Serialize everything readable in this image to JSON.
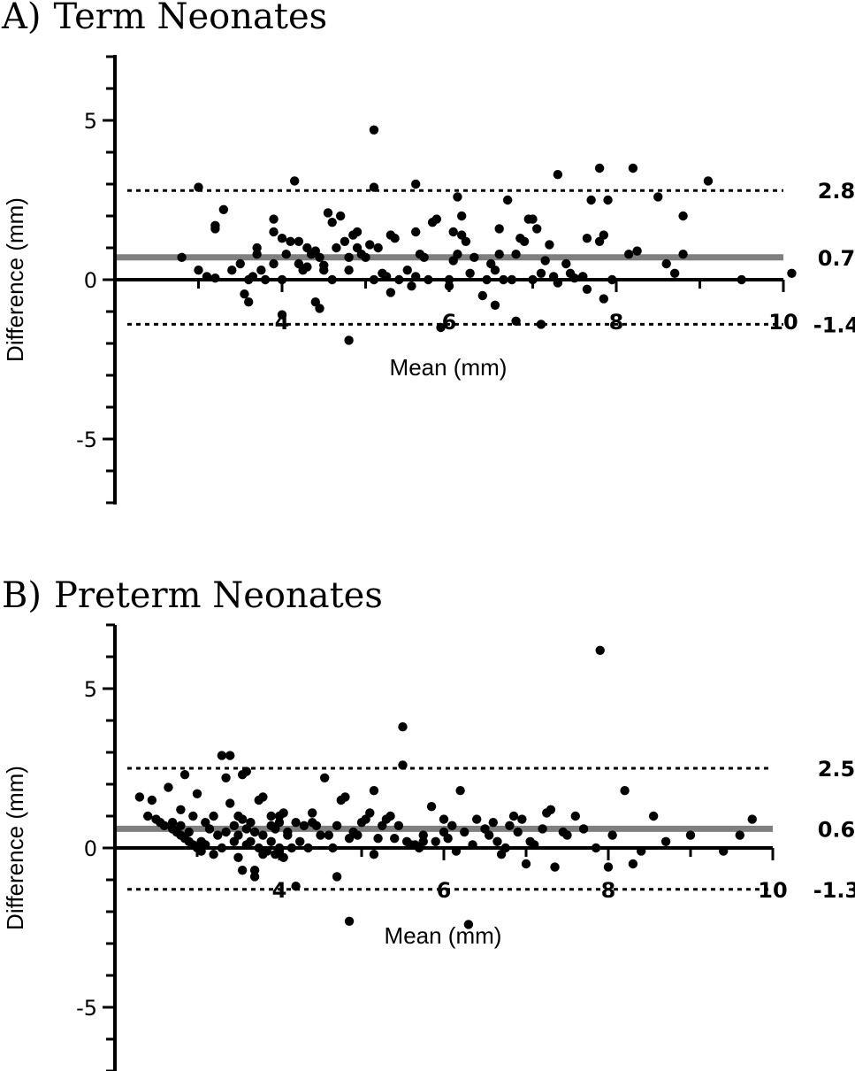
{
  "chart_data": [
    {
      "type": "scatter",
      "panel_label": "A)",
      "title": "Term Neonates",
      "xlabel": "Mean (mm)",
      "ylabel": "Difference (mm)",
      "xlim": [
        2,
        10
      ],
      "ylim": [
        -7,
        7
      ],
      "x_ticks": [
        4,
        6,
        8,
        10
      ],
      "y_ticks": [
        5,
        0,
        -5
      ],
      "mean_line": {
        "value": 0.7,
        "label": "0.7",
        "color": "#7f7f7f"
      },
      "upper_loa": {
        "value": 2.8,
        "label": "2.8"
      },
      "lower_loa": {
        "value": -1.4,
        "label": "-1.4"
      },
      "points": [
        [
          2.8,
          0.7
        ],
        [
          3.0,
          2.9
        ],
        [
          3.0,
          0.3
        ],
        [
          3.1,
          0.1
        ],
        [
          3.2,
          1.6
        ],
        [
          3.2,
          1.7
        ],
        [
          3.2,
          0.05
        ],
        [
          3.3,
          2.2
        ],
        [
          3.4,
          0.3
        ],
        [
          3.5,
          0.5
        ],
        [
          3.55,
          -0.45
        ],
        [
          3.6,
          0.0
        ],
        [
          3.6,
          -0.7
        ],
        [
          3.65,
          0.1
        ],
        [
          3.7,
          1.0
        ],
        [
          3.7,
          0.8
        ],
        [
          3.75,
          0.3
        ],
        [
          3.8,
          0.0
        ],
        [
          3.9,
          1.5
        ],
        [
          3.9,
          0.5
        ],
        [
          3.9,
          1.9
        ],
        [
          4.0,
          0.0
        ],
        [
          4.0,
          1.3
        ],
        [
          4.0,
          -1.1
        ],
        [
          4.05,
          0.8
        ],
        [
          4.1,
          1.2
        ],
        [
          4.15,
          3.1
        ],
        [
          4.2,
          0.5
        ],
        [
          4.2,
          1.2
        ],
        [
          4.25,
          0.3
        ],
        [
          4.3,
          1.0
        ],
        [
          4.3,
          0.4
        ],
        [
          4.35,
          0.8
        ],
        [
          4.4,
          0.9
        ],
        [
          4.4,
          -0.7
        ],
        [
          4.45,
          -0.9
        ],
        [
          4.45,
          0.7
        ],
        [
          4.5,
          0.3
        ],
        [
          4.5,
          0.45
        ],
        [
          4.55,
          2.1
        ],
        [
          4.6,
          1.8
        ],
        [
          4.6,
          0.0
        ],
        [
          4.65,
          1.0
        ],
        [
          4.7,
          2.0
        ],
        [
          4.75,
          1.2
        ],
        [
          4.8,
          -1.9
        ],
        [
          4.8,
          0.7
        ],
        [
          4.8,
          0.3
        ],
        [
          4.85,
          1.4
        ],
        [
          4.9,
          1.0
        ],
        [
          4.9,
          1.5
        ],
        [
          4.95,
          0.8
        ],
        [
          5.0,
          0.7
        ],
        [
          5.05,
          1.1
        ],
        [
          5.1,
          4.7
        ],
        [
          5.1,
          2.9
        ],
        [
          5.1,
          0.0
        ],
        [
          5.15,
          1.0
        ],
        [
          5.2,
          0.2
        ],
        [
          5.25,
          0.1
        ],
        [
          5.3,
          1.4
        ],
        [
          5.3,
          -0.4
        ],
        [
          5.35,
          1.3
        ],
        [
          5.4,
          0.0
        ],
        [
          5.5,
          0.3
        ],
        [
          5.55,
          -0.2
        ],
        [
          5.6,
          1.5
        ],
        [
          5.6,
          0.1
        ],
        [
          5.6,
          3.0
        ],
        [
          5.65,
          0.8
        ],
        [
          5.7,
          0.7
        ],
        [
          5.75,
          0.0
        ],
        [
          5.8,
          1.8
        ],
        [
          5.85,
          1.9
        ],
        [
          5.9,
          -1.5
        ],
        [
          6.0,
          -0.2
        ],
        [
          6.0,
          0.0
        ],
        [
          6.05,
          0.6
        ],
        [
          6.05,
          1.5
        ],
        [
          6.1,
          2.6
        ],
        [
          6.1,
          0.8
        ],
        [
          6.15,
          2.0
        ],
        [
          6.15,
          1.4
        ],
        [
          6.2,
          1.2
        ],
        [
          6.25,
          0.2
        ],
        [
          6.3,
          0.7
        ],
        [
          6.4,
          -0.5
        ],
        [
          6.45,
          0.0
        ],
        [
          6.5,
          0.5
        ],
        [
          6.55,
          -0.8
        ],
        [
          6.55,
          0.3
        ],
        [
          6.6,
          1.6
        ],
        [
          6.6,
          0.8
        ],
        [
          6.65,
          0.0
        ],
        [
          6.7,
          2.5
        ],
        [
          6.75,
          0.0
        ],
        [
          6.8,
          -1.3
        ],
        [
          6.8,
          0.8
        ],
        [
          6.85,
          1.3
        ],
        [
          6.9,
          1.2
        ],
        [
          6.95,
          1.9
        ],
        [
          7.0,
          0.0
        ],
        [
          7.0,
          1.9
        ],
        [
          7.05,
          1.6
        ],
        [
          7.1,
          -1.4
        ],
        [
          7.1,
          0.2
        ],
        [
          7.15,
          0.6
        ],
        [
          7.2,
          1.1
        ],
        [
          7.3,
          -0.1
        ],
        [
          7.4,
          0.5
        ],
        [
          7.5,
          0.05
        ],
        [
          7.6,
          0.1
        ],
        [
          7.65,
          -0.3
        ],
        [
          7.7,
          2.5
        ],
        [
          7.8,
          1.2
        ],
        [
          7.85,
          -0.6
        ],
        [
          7.6,
          0.1
        ],
        [
          7.25,
          0.1
        ],
        [
          7.3,
          3.3
        ],
        [
          7.45,
          0.2
        ],
        [
          7.65,
          1.3
        ],
        [
          7.8,
          3.5
        ],
        [
          7.95,
          0.0
        ],
        [
          7.9,
          2.5
        ],
        [
          7.85,
          1.4
        ],
        [
          8.2,
          3.5
        ],
        [
          8.25,
          0.9
        ],
        [
          8.15,
          0.8
        ],
        [
          8.5,
          2.6
        ],
        [
          8.6,
          0.5
        ],
        [
          8.7,
          0.2
        ],
        [
          8.8,
          2.0
        ],
        [
          8.8,
          0.8
        ],
        [
          9.1,
          3.1
        ],
        [
          9.5,
          0.0
        ],
        [
          10.1,
          0.2
        ]
      ]
    },
    {
      "type": "scatter",
      "panel_label": "B)",
      "title": "Preterm Neonates",
      "xlabel": "Mean (mm)",
      "ylabel": "Difference (mm)",
      "xlim": [
        2,
        10
      ],
      "ylim": [
        -7,
        7
      ],
      "x_ticks": [
        4,
        6,
        8,
        10
      ],
      "y_ticks": [
        5,
        0,
        -5
      ],
      "mean_line": {
        "value": 0.6,
        "label": "0.6",
        "color": "#7f7f7f"
      },
      "upper_loa": {
        "value": 2.5,
        "label": "2.5"
      },
      "lower_loa": {
        "value": -1.3,
        "label": "-1.3"
      },
      "points": [
        [
          2.3,
          1.6
        ],
        [
          2.4,
          1.0
        ],
        [
          2.45,
          1.5
        ],
        [
          2.5,
          0.9
        ],
        [
          2.55,
          0.8
        ],
        [
          2.6,
          0.7
        ],
        [
          2.65,
          1.9
        ],
        [
          2.7,
          0.6
        ],
        [
          2.7,
          0.8
        ],
        [
          2.75,
          0.5
        ],
        [
          2.8,
          0.4
        ],
        [
          2.8,
          0.7
        ],
        [
          2.8,
          1.2
        ],
        [
          2.85,
          0.3
        ],
        [
          2.85,
          2.3
        ],
        [
          2.9,
          0.2
        ],
        [
          2.9,
          0.5
        ],
        [
          2.95,
          1.0
        ],
        [
          2.95,
          0.1
        ],
        [
          3.0,
          0.0
        ],
        [
          3.0,
          1.7
        ],
        [
          3.05,
          0.2
        ],
        [
          3.05,
          -0.1
        ],
        [
          3.1,
          0.8
        ],
        [
          3.1,
          0.1
        ],
        [
          3.15,
          0.6
        ],
        [
          3.2,
          -0.2
        ],
        [
          3.2,
          1.0
        ],
        [
          3.25,
          0.4
        ],
        [
          3.3,
          2.9
        ],
        [
          3.3,
          0.0
        ],
        [
          3.35,
          2.2
        ],
        [
          3.35,
          0.5
        ],
        [
          3.4,
          2.9
        ],
        [
          3.4,
          1.4
        ],
        [
          3.45,
          0.7
        ],
        [
          3.45,
          0.2
        ],
        [
          3.5,
          1.0
        ],
        [
          3.5,
          0.4
        ],
        [
          3.5,
          -0.3
        ],
        [
          3.55,
          2.3
        ],
        [
          3.55,
          0.9
        ],
        [
          3.55,
          -0.7
        ],
        [
          3.6,
          0.6
        ],
        [
          3.6,
          0.1
        ],
        [
          3.6,
          2.4
        ],
        [
          3.65,
          0.8
        ],
        [
          3.65,
          0.2
        ],
        [
          3.7,
          -0.7
        ],
        [
          3.7,
          0.5
        ],
        [
          3.7,
          -0.9
        ],
        [
          3.75,
          1.5
        ],
        [
          3.75,
          0.0
        ],
        [
          3.8,
          1.6
        ],
        [
          3.8,
          0.4
        ],
        [
          3.8,
          -0.2
        ],
        [
          3.85,
          -0.1
        ],
        [
          3.9,
          0.7
        ],
        [
          3.9,
          1.0
        ],
        [
          3.9,
          0.2
        ],
        [
          3.95,
          -0.2
        ],
        [
          3.95,
          0.6
        ],
        [
          4.0,
          0.8
        ],
        [
          4.0,
          0.0
        ],
        [
          4.0,
          -0.1
        ],
        [
          4.0,
          1.0
        ],
        [
          4.05,
          1.1
        ],
        [
          4.05,
          -0.3
        ],
        [
          4.1,
          0.4
        ],
        [
          4.1,
          0.5
        ],
        [
          4.15,
          0.0
        ],
        [
          4.2,
          -1.2
        ],
        [
          4.2,
          0.8
        ],
        [
          4.25,
          0.2
        ],
        [
          4.3,
          0.7
        ],
        [
          4.35,
          0.0
        ],
        [
          4.4,
          1.1
        ],
        [
          4.4,
          0.8
        ],
        [
          4.45,
          0.7
        ],
        [
          4.5,
          0.4
        ],
        [
          4.55,
          2.2
        ],
        [
          4.6,
          0.4
        ],
        [
          4.65,
          0.0
        ],
        [
          4.7,
          0.7
        ],
        [
          4.7,
          -0.9
        ],
        [
          4.75,
          1.5
        ],
        [
          4.8,
          1.6
        ],
        [
          4.85,
          -2.3
        ],
        [
          4.85,
          0.3
        ],
        [
          4.9,
          0.5
        ],
        [
          4.95,
          0.4
        ],
        [
          5.0,
          0.8
        ],
        [
          5.05,
          0.9
        ],
        [
          5.1,
          1.1
        ],
        [
          5.15,
          -0.2
        ],
        [
          5.15,
          1.8
        ],
        [
          5.2,
          0.3
        ],
        [
          5.25,
          0.7
        ],
        [
          5.3,
          0.9
        ],
        [
          5.35,
          1.0
        ],
        [
          5.4,
          0.3
        ],
        [
          5.45,
          0.7
        ],
        [
          5.5,
          3.8
        ],
        [
          5.5,
          2.6
        ],
        [
          5.55,
          0.2
        ],
        [
          5.6,
          0.1
        ],
        [
          5.65,
          0.1
        ],
        [
          5.7,
          0.0
        ],
        [
          5.75,
          0.4
        ],
        [
          5.75,
          0.2
        ],
        [
          5.85,
          1.3
        ],
        [
          5.9,
          0.2
        ],
        [
          6.0,
          0.5
        ],
        [
          6.0,
          0.9
        ],
        [
          6.05,
          0.3
        ],
        [
          6.1,
          0.7
        ],
        [
          6.15,
          -0.1
        ],
        [
          6.2,
          1.8
        ],
        [
          6.25,
          0.5
        ],
        [
          6.3,
          -2.4
        ],
        [
          6.35,
          0.1
        ],
        [
          6.4,
          0.9
        ],
        [
          6.5,
          0.6
        ],
        [
          6.55,
          0.4
        ],
        [
          6.6,
          0.8
        ],
        [
          6.65,
          0.2
        ],
        [
          6.7,
          -0.2
        ],
        [
          6.75,
          0.0
        ],
        [
          6.8,
          0.7
        ],
        [
          6.85,
          1.0
        ],
        [
          6.9,
          0.5
        ],
        [
          6.95,
          0.9
        ],
        [
          7.0,
          -0.5
        ],
        [
          7.05,
          0.2
        ],
        [
          7.1,
          0.1
        ],
        [
          7.2,
          0.6
        ],
        [
          7.25,
          1.1
        ],
        [
          7.3,
          1.2
        ],
        [
          7.35,
          -0.6
        ],
        [
          7.45,
          0.5
        ],
        [
          7.5,
          0.4
        ],
        [
          7.6,
          1.0
        ],
        [
          7.7,
          0.6
        ],
        [
          7.85,
          0.0
        ],
        [
          7.9,
          6.2
        ],
        [
          8.0,
          -0.6
        ],
        [
          8.05,
          0.4
        ],
        [
          8.2,
          1.8
        ],
        [
          8.3,
          -0.5
        ],
        [
          8.4,
          -0.1
        ],
        [
          8.55,
          1.0
        ],
        [
          8.7,
          0.2
        ],
        [
          9.0,
          0.4
        ],
        [
          9.4,
          -0.1
        ],
        [
          9.6,
          0.4
        ],
        [
          9.75,
          0.9
        ]
      ]
    }
  ]
}
